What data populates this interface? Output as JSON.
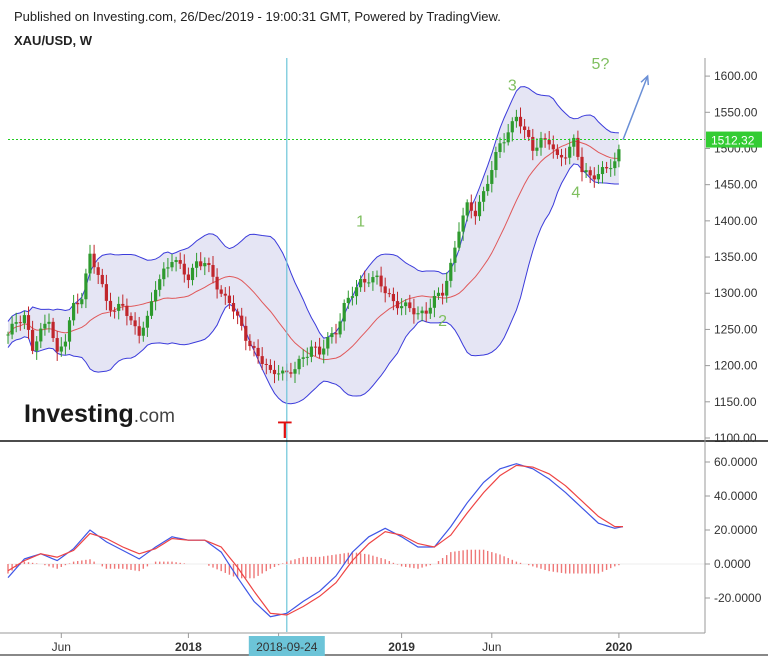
{
  "header": {
    "published": "Published on Investing.com, 26/Dec/2019 - 19:00:31 GMT, Powered by TradingView.",
    "symbol": "XAU/USD, W"
  },
  "watermark": {
    "brand": "Investing",
    "suffix": ".com"
  },
  "colors": {
    "up_candle": "#2e9a2e",
    "down_candle": "#c0262c",
    "band": "#3b3bdb",
    "band_fill": "#dcdcf0",
    "basis": "#e0585a",
    "price_line": "#22cc22",
    "macd": "#3f56e6",
    "signal": "#ee4444",
    "hist": "#ee7777",
    "vline": "#6cc4d8",
    "arrow": "#6a8fd6",
    "wave_label": "#7fbf5f",
    "t_marker": "#e01010",
    "price_badge": "#33cc33"
  },
  "chart_data": [
    {
      "type": "candlestick",
      "title": "XAU/USD, W",
      "ylim": [
        1100,
        1625
      ],
      "y_ticks": [
        "1600.00",
        "1550.00",
        "1500.00",
        "1450.00",
        "1400.00",
        "1350.00",
        "1300.00",
        "1250.00",
        "1200.00",
        "1150.00",
        "1100.00"
      ],
      "x_ticks": [
        "Jun",
        "2018",
        "Jun",
        "2018-09-24",
        "2019",
        "Jun",
        "2020"
      ],
      "last_price": "1512.32",
      "overlays": [
        "Bollinger Bands",
        "Basis"
      ],
      "annotations": {
        "waves": [
          "1",
          "2",
          "3",
          "4",
          "5?"
        ],
        "marker": "T",
        "highlighted_date": "2018-09-24"
      },
      "price_path": [
        {
          "x": 0,
          "y": 1240
        },
        {
          "x": 4,
          "y": 1262
        },
        {
          "x": 8,
          "y": 1270
        },
        {
          "x": 12,
          "y": 1222
        },
        {
          "x": 16,
          "y": 1245
        },
        {
          "x": 20,
          "y": 1268
        },
        {
          "x": 24,
          "y": 1215
        },
        {
          "x": 28,
          "y": 1235
        },
        {
          "x": 32,
          "y": 1283
        },
        {
          "x": 36,
          "y": 1298
        },
        {
          "x": 40,
          "y": 1350
        },
        {
          "x": 44,
          "y": 1325
        },
        {
          "x": 48,
          "y": 1292
        },
        {
          "x": 52,
          "y": 1275
        },
        {
          "x": 56,
          "y": 1282
        },
        {
          "x": 60,
          "y": 1260
        },
        {
          "x": 64,
          "y": 1248
        },
        {
          "x": 68,
          "y": 1262
        },
        {
          "x": 72,
          "y": 1308
        },
        {
          "x": 76,
          "y": 1332
        },
        {
          "x": 80,
          "y": 1348
        },
        {
          "x": 84,
          "y": 1334
        },
        {
          "x": 88,
          "y": 1322
        },
        {
          "x": 92,
          "y": 1345
        },
        {
          "x": 96,
          "y": 1340
        },
        {
          "x": 100,
          "y": 1322
        },
        {
          "x": 104,
          "y": 1300
        },
        {
          "x": 108,
          "y": 1290
        },
        {
          "x": 112,
          "y": 1262
        },
        {
          "x": 116,
          "y": 1240
        },
        {
          "x": 120,
          "y": 1222
        },
        {
          "x": 124,
          "y": 1205
        },
        {
          "x": 128,
          "y": 1188
        },
        {
          "x": 132,
          "y": 1196
        },
        {
          "x": 136,
          "y": 1188
        },
        {
          "x": 140,
          "y": 1194
        },
        {
          "x": 144,
          "y": 1212
        },
        {
          "x": 148,
          "y": 1228
        },
        {
          "x": 152,
          "y": 1215
        },
        {
          "x": 156,
          "y": 1235
        },
        {
          "x": 160,
          "y": 1250
        },
        {
          "x": 164,
          "y": 1282
        },
        {
          "x": 168,
          "y": 1298
        },
        {
          "x": 172,
          "y": 1316
        },
        {
          "x": 176,
          "y": 1322
        },
        {
          "x": 180,
          "y": 1318
        },
        {
          "x": 184,
          "y": 1302
        },
        {
          "x": 188,
          "y": 1290
        },
        {
          "x": 192,
          "y": 1283
        },
        {
          "x": 196,
          "y": 1277
        },
        {
          "x": 200,
          "y": 1272
        },
        {
          "x": 204,
          "y": 1277
        },
        {
          "x": 208,
          "y": 1290
        },
        {
          "x": 212,
          "y": 1300
        },
        {
          "x": 216,
          "y": 1340
        },
        {
          "x": 220,
          "y": 1390
        },
        {
          "x": 224,
          "y": 1418
        },
        {
          "x": 228,
          "y": 1412
        },
        {
          "x": 232,
          "y": 1440
        },
        {
          "x": 236,
          "y": 1470
        },
        {
          "x": 240,
          "y": 1505
        },
        {
          "x": 244,
          "y": 1525
        },
        {
          "x": 248,
          "y": 1545
        },
        {
          "x": 252,
          "y": 1520
        },
        {
          "x": 256,
          "y": 1502
        },
        {
          "x": 260,
          "y": 1512
        },
        {
          "x": 264,
          "y": 1508
        },
        {
          "x": 268,
          "y": 1485
        },
        {
          "x": 272,
          "y": 1495
        },
        {
          "x": 276,
          "y": 1510
        },
        {
          "x": 280,
          "y": 1468
        },
        {
          "x": 284,
          "y": 1462
        },
        {
          "x": 288,
          "y": 1468
        },
        {
          "x": 292,
          "y": 1470
        },
        {
          "x": 296,
          "y": 1480
        },
        {
          "x": 300,
          "y": 1512
        }
      ]
    },
    {
      "type": "line",
      "title": "MACD",
      "ylim": [
        -40,
        70
      ],
      "y_ticks": [
        "60.0000",
        "40.0000",
        "20.0000",
        "0.0000",
        "-20.0000"
      ],
      "series": [
        {
          "key": "macd",
          "values": [
            {
              "x": 0,
              "y": -8
            },
            {
              "x": 8,
              "y": 3
            },
            {
              "x": 16,
              "y": 6
            },
            {
              "x": 24,
              "y": 2
            },
            {
              "x": 32,
              "y": 9
            },
            {
              "x": 40,
              "y": 20
            },
            {
              "x": 48,
              "y": 13
            },
            {
              "x": 56,
              "y": 8
            },
            {
              "x": 64,
              "y": 3
            },
            {
              "x": 72,
              "y": 10
            },
            {
              "x": 80,
              "y": 16
            },
            {
              "x": 88,
              "y": 14
            },
            {
              "x": 96,
              "y": 14
            },
            {
              "x": 104,
              "y": 7
            },
            {
              "x": 112,
              "y": -8
            },
            {
              "x": 120,
              "y": -22
            },
            {
              "x": 128,
              "y": -31
            },
            {
              "x": 136,
              "y": -29
            },
            {
              "x": 144,
              "y": -22
            },
            {
              "x": 152,
              "y": -16
            },
            {
              "x": 160,
              "y": -7
            },
            {
              "x": 168,
              "y": 7
            },
            {
              "x": 176,
              "y": 16
            },
            {
              "x": 184,
              "y": 21
            },
            {
              "x": 192,
              "y": 16
            },
            {
              "x": 200,
              "y": 10
            },
            {
              "x": 208,
              "y": 10
            },
            {
              "x": 216,
              "y": 22
            },
            {
              "x": 224,
              "y": 36
            },
            {
              "x": 232,
              "y": 48
            },
            {
              "x": 240,
              "y": 56
            },
            {
              "x": 248,
              "y": 59
            },
            {
              "x": 256,
              "y": 56
            },
            {
              "x": 264,
              "y": 50
            },
            {
              "x": 272,
              "y": 42
            },
            {
              "x": 280,
              "y": 33
            },
            {
              "x": 288,
              "y": 24
            },
            {
              "x": 296,
              "y": 21
            },
            {
              "x": 300,
              "y": 22
            }
          ]
        },
        {
          "key": "signal",
          "values": [
            {
              "x": 0,
              "y": -4
            },
            {
              "x": 8,
              "y": 2
            },
            {
              "x": 16,
              "y": 6
            },
            {
              "x": 24,
              "y": 4
            },
            {
              "x": 32,
              "y": 8
            },
            {
              "x": 40,
              "y": 18
            },
            {
              "x": 48,
              "y": 15
            },
            {
              "x": 56,
              "y": 10
            },
            {
              "x": 64,
              "y": 6
            },
            {
              "x": 72,
              "y": 9
            },
            {
              "x": 80,
              "y": 15
            },
            {
              "x": 88,
              "y": 14
            },
            {
              "x": 96,
              "y": 14
            },
            {
              "x": 104,
              "y": 10
            },
            {
              "x": 112,
              "y": -2
            },
            {
              "x": 120,
              "y": -16
            },
            {
              "x": 128,
              "y": -29
            },
            {
              "x": 136,
              "y": -30
            },
            {
              "x": 144,
              "y": -25
            },
            {
              "x": 152,
              "y": -19
            },
            {
              "x": 160,
              "y": -11
            },
            {
              "x": 168,
              "y": 2
            },
            {
              "x": 176,
              "y": 12
            },
            {
              "x": 184,
              "y": 19
            },
            {
              "x": 192,
              "y": 17
            },
            {
              "x": 200,
              "y": 12
            },
            {
              "x": 208,
              "y": 10
            },
            {
              "x": 216,
              "y": 17
            },
            {
              "x": 224,
              "y": 30
            },
            {
              "x": 232,
              "y": 42
            },
            {
              "x": 240,
              "y": 52
            },
            {
              "x": 248,
              "y": 58
            },
            {
              "x": 256,
              "y": 57
            },
            {
              "x": 264,
              "y": 53
            },
            {
              "x": 272,
              "y": 46
            },
            {
              "x": 280,
              "y": 37
            },
            {
              "x": 288,
              "y": 28
            },
            {
              "x": 296,
              "y": 22
            },
            {
              "x": 300,
              "y": 22
            }
          ]
        }
      ]
    }
  ]
}
